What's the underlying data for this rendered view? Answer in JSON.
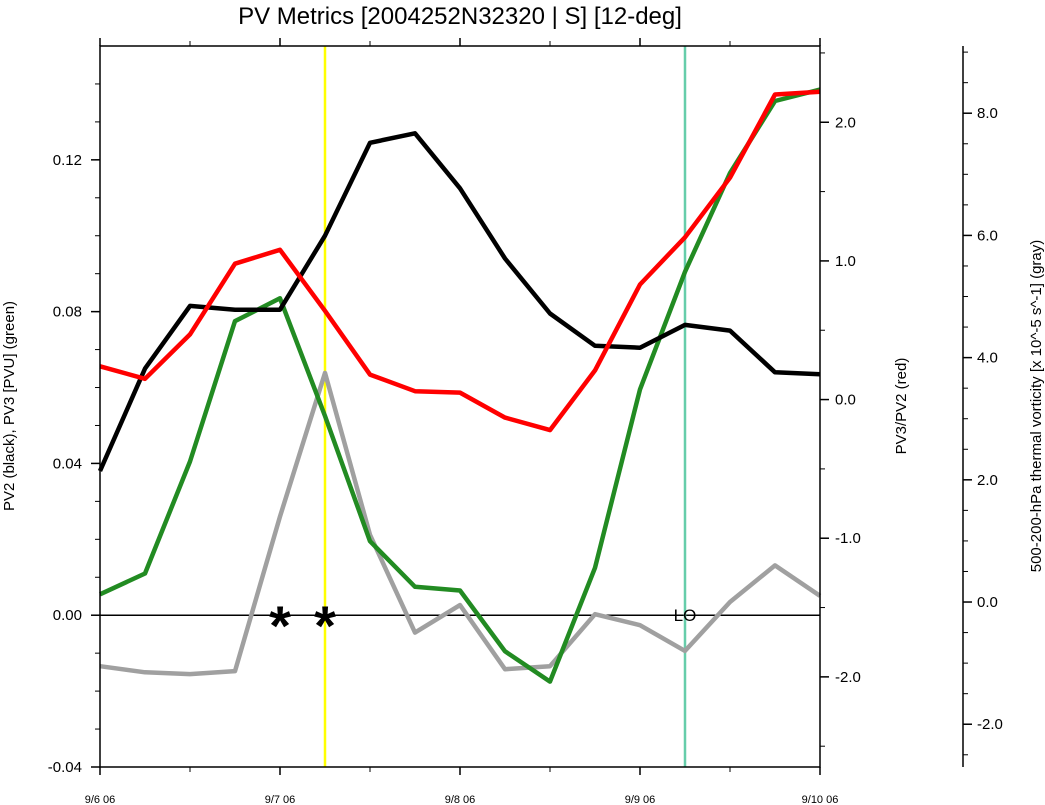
{
  "chart_data": {
    "type": "line",
    "title": "PV Metrics [2004252N32320 | S] [12-deg]",
    "y_left_label": "PV2 (black), PV3 [PVU] (green)",
    "y_right_label": "PV3/PV2 (red)",
    "y_far_right_label": "500-200-hPa thermal vorticity [x 10^-5 s^-1] (gray)",
    "x_ticks": [
      "9/6 06",
      "9/7 06",
      "9/8 06",
      "9/9 06",
      "9/10 06"
    ],
    "x_range_days": [
      0,
      4
    ],
    "y_left_range": [
      -0.04,
      0.15
    ],
    "y_left_ticks": [
      "-0.04",
      "0.00",
      "0.04",
      "0.08",
      "0.12"
    ],
    "y_right_range": [
      -2.65,
      2.55
    ],
    "y_right_ticks": [
      "-2.0",
      "-1.0",
      "0.0",
      "1.0",
      "2.0"
    ],
    "y_far_right_range": [
      -2.7,
      9.1
    ],
    "y_far_right_ticks": [
      "-2.0",
      "0.0",
      "2.0",
      "4.0",
      "6.0",
      "8.0"
    ],
    "x_values": [
      0,
      0.25,
      0.5,
      0.75,
      1,
      1.25,
      1.5,
      1.75,
      2,
      2.25,
      2.5,
      2.75,
      3,
      3.25,
      3.5,
      3.75,
      4
    ],
    "series": [
      {
        "name": "PV2",
        "color": "#000000",
        "axis": "left",
        "values": [
          0.038,
          0.065,
          0.0815,
          0.0805,
          0.0805,
          0.1,
          0.1245,
          0.127,
          0.1125,
          0.094,
          0.0795,
          0.071,
          0.0705,
          0.0765,
          0.075,
          0.064,
          0.0635
        ]
      },
      {
        "name": "PV3",
        "color": "#228b22",
        "axis": "left",
        "values": [
          0.0055,
          0.011,
          0.0405,
          0.0775,
          0.0835,
          0.0525,
          0.0195,
          0.0075,
          0.0065,
          -0.0095,
          -0.0175,
          0.0125,
          0.0595,
          0.0905,
          0.1165,
          0.1355,
          0.1385
        ]
      },
      {
        "name": "PV3/PV2",
        "color": "#ff0000",
        "axis": "right",
        "values": [
          0.24,
          0.15,
          0.47,
          0.98,
          1.08,
          0.64,
          0.18,
          0.06,
          0.05,
          -0.13,
          -0.22,
          0.21,
          0.83,
          1.17,
          1.6,
          2.2,
          2.22
        ]
      },
      {
        "name": "thermal vorticity",
        "color": "#a0a0a0",
        "axis": "far_right",
        "values": [
          -1.05,
          -1.15,
          -1.18,
          -1.13,
          1.4,
          3.75,
          1.1,
          -0.5,
          -0.05,
          -1.1,
          -1.05,
          -0.2,
          -0.38,
          -0.8,
          0.0,
          0.6,
          0.1
        ]
      }
    ],
    "vertical_lines": [
      {
        "x": 1.25,
        "color": "#ffff00"
      },
      {
        "x": 3.25,
        "color": "#66cdaa"
      }
    ],
    "markers": [
      {
        "x": 1.0,
        "y": 0.0,
        "text": "*"
      },
      {
        "x": 1.25,
        "y": 0.0,
        "text": "*"
      }
    ],
    "annotations": [
      {
        "x": 3.25,
        "y": 0.0,
        "text": "LO"
      }
    ],
    "zero_line": true
  }
}
